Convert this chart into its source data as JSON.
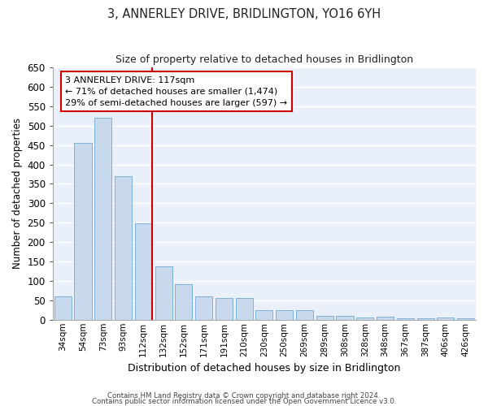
{
  "title": "3, ANNERLEY DRIVE, BRIDLINGTON, YO16 6YH",
  "subtitle": "Size of property relative to detached houses in Bridlington",
  "xlabel": "Distribution of detached houses by size in Bridlington",
  "ylabel": "Number of detached properties",
  "categories": [
    "34sqm",
    "54sqm",
    "73sqm",
    "93sqm",
    "112sqm",
    "132sqm",
    "152sqm",
    "171sqm",
    "191sqm",
    "210sqm",
    "230sqm",
    "250sqm",
    "269sqm",
    "289sqm",
    "308sqm",
    "328sqm",
    "348sqm",
    "367sqm",
    "387sqm",
    "406sqm",
    "426sqm"
  ],
  "values": [
    60,
    455,
    520,
    370,
    248,
    138,
    92,
    60,
    57,
    55,
    25,
    25,
    25,
    11,
    11,
    6,
    8,
    4,
    3,
    5,
    3
  ],
  "bar_color": "#c8d9ed",
  "bar_edge_color": "#6fa8d5",
  "background_color": "#eaf0f9",
  "grid_color": "#ffffff",
  "ylim": [
    0,
    650
  ],
  "yticks": [
    0,
    50,
    100,
    150,
    200,
    250,
    300,
    350,
    400,
    450,
    500,
    550,
    600,
    650
  ],
  "red_line_bin_index": 4,
  "annotation_text": "3 ANNERLEY DRIVE: 117sqm\n← 71% of detached houses are smaller (1,474)\n29% of semi-detached houses are larger (597) →",
  "annotation_box_edge": "#cc0000",
  "red_line_color": "#cc0000",
  "footer_line1": "Contains HM Land Registry data © Crown copyright and database right 2024.",
  "footer_line2": "Contains public sector information licensed under the Open Government Licence v3.0."
}
